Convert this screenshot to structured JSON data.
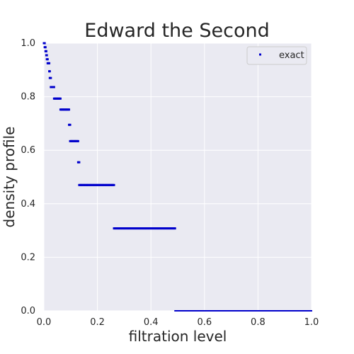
{
  "chart_data": {
    "type": "scatter",
    "title": "Edward the Second",
    "xlabel": "filtration level",
    "ylabel": "density profile",
    "xlim": [
      0,
      1
    ],
    "ylim": [
      0,
      1
    ],
    "xticks": [
      "0.0",
      "0.2",
      "0.4",
      "0.6",
      "0.8",
      "1.0"
    ],
    "yticks": [
      "0.0",
      "0.2",
      "0.4",
      "0.6",
      "0.8",
      "1.0"
    ],
    "grid": true,
    "legend": {
      "position": "top-right",
      "entries": [
        "exact"
      ]
    },
    "colors": {
      "background": "#EAEAF2",
      "grid": "#FFFFFF",
      "series": "#0000CC"
    },
    "series": [
      {
        "name": "exact",
        "segments": [
          {
            "x": [
              0.0,
              0.003
            ],
            "y": 1.0
          },
          {
            "x": [
              0.003,
              0.006
            ],
            "y": 0.985
          },
          {
            "x": [
              0.006,
              0.009
            ],
            "y": 0.97
          },
          {
            "x": [
              0.009,
              0.011
            ],
            "y": 0.955
          },
          {
            "x": [
              0.011,
              0.014
            ],
            "y": 0.94
          },
          {
            "x": [
              0.014,
              0.02
            ],
            "y": 0.925
          },
          {
            "x": [
              0.02,
              0.022
            ],
            "y": 0.895
          },
          {
            "x": [
              0.022,
              0.026
            ],
            "y": 0.87
          },
          {
            "x": [
              0.026,
              0.038
            ],
            "y": 0.836
          },
          {
            "x": [
              0.038,
              0.062
            ],
            "y": 0.793
          },
          {
            "x": [
              0.062,
              0.094
            ],
            "y": 0.752
          },
          {
            "x": [
              0.094,
              0.098
            ],
            "y": 0.695
          },
          {
            "x": [
              0.098,
              0.128
            ],
            "y": 0.634
          },
          {
            "x": [
              0.128,
              0.132
            ],
            "y": 0.555
          },
          {
            "x": [
              0.132,
              0.262
            ],
            "y": 0.47
          },
          {
            "x": [
              0.262,
              0.49
            ],
            "y": 0.308
          },
          {
            "x": [
              0.49,
              1.0
            ],
            "y": 0.0
          }
        ]
      }
    ]
  }
}
